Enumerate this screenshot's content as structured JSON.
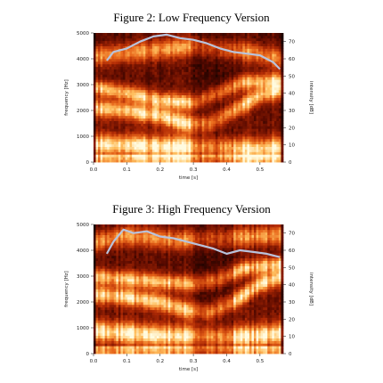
{
  "figures": [
    {
      "title": "Figure 2: Low Frequency Version",
      "xlabel": "time [s]",
      "ylabel_left": "frequency [Hz]",
      "ylabel_right": "intensity [dB]"
    },
    {
      "title": "Figure 3: High Frequency Version",
      "xlabel": "time [s]",
      "ylabel_left": "frequency [Hz]",
      "ylabel_right": "intensity [dB]"
    }
  ],
  "chart_data": [
    {
      "type": "heatmap",
      "title": "Figure 2: Low Frequency Version",
      "xlabel": "time [s]",
      "ylabel": "frequency [Hz]",
      "y2label": "intensity [dB]",
      "xlim": [
        0.0,
        0.57
      ],
      "ylim": [
        0,
        5000
      ],
      "y2lim": [
        0,
        75
      ],
      "xticks": [
        "0.0",
        "0.1",
        "0.2",
        "0.3",
        "0.4",
        "0.5"
      ],
      "xtick_values": [
        0.0,
        0.1,
        0.2,
        0.3,
        0.4,
        0.5
      ],
      "yticks": [
        "0",
        "1000",
        "2000",
        "3000",
        "4000",
        "5000"
      ],
      "ytick_values": [
        0,
        1000,
        2000,
        3000,
        4000,
        5000
      ],
      "y2ticks": [
        "0",
        "10",
        "20",
        "30",
        "40",
        "50",
        "60",
        "70"
      ],
      "y2tick_values": [
        0,
        10,
        20,
        30,
        40,
        50,
        60,
        70
      ],
      "colormap": [
        "#000000",
        "#5a0a00",
        "#b02a05",
        "#e8661a",
        "#ffc060",
        "#fffbe0"
      ],
      "intensity_line_color": "#b9c3dc",
      "intensity": {
        "x": [
          0.04,
          0.06,
          0.1,
          0.14,
          0.18,
          0.22,
          0.26,
          0.3,
          0.34,
          0.38,
          0.42,
          0.46,
          0.5,
          0.54,
          0.56
        ],
        "y": [
          59,
          64,
          66,
          70,
          73,
          74,
          72,
          71,
          69,
          66,
          64,
          63,
          62,
          58,
          54
        ]
      },
      "spectrogram_bands": [
        {
          "name": "low",
          "x": [
            0.0,
            0.1,
            0.2,
            0.3,
            0.4,
            0.5,
            0.57
          ],
          "y": [
            700,
            650,
            600,
            600,
            550,
            500,
            600
          ]
        },
        {
          "name": "mid",
          "x": [
            0.0,
            0.1,
            0.2,
            0.28,
            0.35,
            0.42,
            0.5,
            0.57
          ],
          "y": [
            2100,
            2000,
            1800,
            1500,
            1500,
            2000,
            2600,
            2800
          ]
        },
        {
          "name": "upper",
          "x": [
            0.0,
            0.1,
            0.2,
            0.3,
            0.38,
            0.45,
            0.57
          ],
          "y": [
            2900,
            2700,
            2400,
            2300,
            2700,
            3100,
            3200
          ]
        },
        {
          "name": "top",
          "x": [
            0.0,
            0.15,
            0.3,
            0.45,
            0.57
          ],
          "y": [
            4100,
            4300,
            4500,
            4300,
            4000
          ]
        }
      ]
    },
    {
      "type": "heatmap",
      "title": "Figure 3: High Frequency Version",
      "xlabel": "time [s]",
      "ylabel": "frequency [Hz]",
      "y2label": "intensity [dB]",
      "xlim": [
        0.0,
        0.57
      ],
      "ylim": [
        0,
        5000
      ],
      "y2lim": [
        0,
        75
      ],
      "xticks": [
        "0.0",
        "0.1",
        "0.2",
        "0.3",
        "0.4",
        "0.5"
      ],
      "xtick_values": [
        0.0,
        0.1,
        0.2,
        0.3,
        0.4,
        0.5
      ],
      "yticks": [
        "0",
        "1000",
        "2000",
        "3000",
        "4000",
        "5000"
      ],
      "ytick_values": [
        0,
        1000,
        2000,
        3000,
        4000,
        5000
      ],
      "y2ticks": [
        "0",
        "10",
        "20",
        "30",
        "40",
        "50",
        "60",
        "70"
      ],
      "y2tick_values": [
        0,
        10,
        20,
        30,
        40,
        50,
        60,
        70
      ],
      "colormap": [
        "#000000",
        "#5a0a00",
        "#b02a05",
        "#e8661a",
        "#ffc060",
        "#fffbe0"
      ],
      "intensity_line_color": "#b9c3dc",
      "intensity": {
        "x": [
          0.04,
          0.06,
          0.09,
          0.12,
          0.16,
          0.2,
          0.24,
          0.28,
          0.32,
          0.36,
          0.4,
          0.44,
          0.48,
          0.52,
          0.56
        ],
        "y": [
          58,
          65,
          72,
          70,
          71,
          68,
          67,
          65,
          63,
          61,
          58,
          60,
          59,
          58,
          56
        ]
      },
      "spectrogram_bands": [
        {
          "name": "low",
          "x": [
            0.0,
            0.1,
            0.2,
            0.3,
            0.4,
            0.5,
            0.57
          ],
          "y": [
            900,
            800,
            700,
            700,
            650,
            700,
            800
          ]
        },
        {
          "name": "mid",
          "x": [
            0.0,
            0.1,
            0.2,
            0.28,
            0.35,
            0.42,
            0.5,
            0.57
          ],
          "y": [
            2300,
            2200,
            2000,
            1700,
            1600,
            2000,
            2700,
            3000
          ]
        },
        {
          "name": "upper",
          "x": [
            0.0,
            0.1,
            0.2,
            0.3,
            0.38,
            0.45,
            0.57
          ],
          "y": [
            3000,
            2900,
            2800,
            2700,
            2900,
            3300,
            3500
          ]
        },
        {
          "name": "top",
          "x": [
            0.0,
            0.1,
            0.25,
            0.4,
            0.57
          ],
          "y": [
            4300,
            4600,
            4400,
            4500,
            4600
          ]
        }
      ]
    }
  ]
}
